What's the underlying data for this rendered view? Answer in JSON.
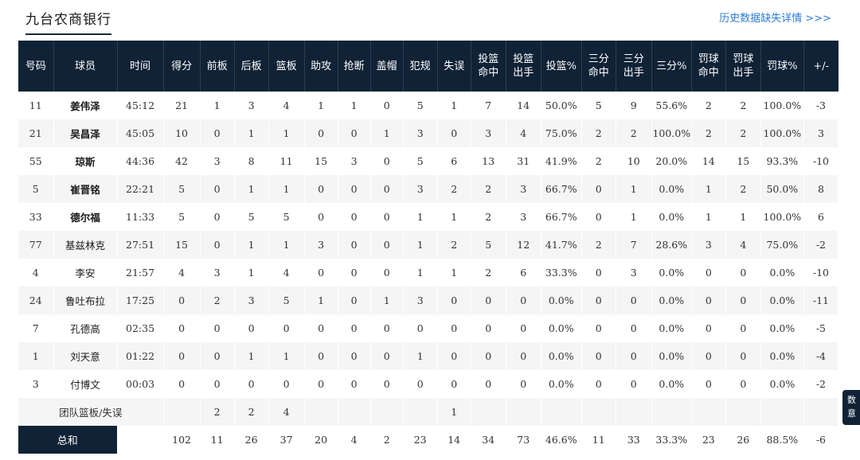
{
  "team": {
    "name": "九台农商银行"
  },
  "missing_link": "历史数据缺失详情 >>>",
  "side_tab": {
    "line1": "数",
    "line2": "意"
  },
  "headers": [
    "号码",
    "球员",
    "时间",
    "得分",
    "前板",
    "后板",
    "篮板",
    "助攻",
    "抢断",
    "盖帽",
    "犯规",
    "失误",
    "投篮\n命中",
    "投篮\n出手",
    "投篮%",
    "三分\n命中",
    "三分\n出手",
    "三分%",
    "罚球\n命中",
    "罚球\n出手",
    "罚球%",
    "+/-"
  ],
  "players": [
    {
      "num": "11",
      "name": "姜伟泽",
      "time": "45:12",
      "pts": "21",
      "oreb": "1",
      "dreb": "3",
      "reb": "4",
      "ast": "1",
      "stl": "1",
      "blk": "0",
      "pf": "5",
      "tov": "1",
      "fgm": "7",
      "fga": "14",
      "fgp": "50.0%",
      "tpm": "5",
      "tpa": "9",
      "tpp": "55.6%",
      "ftm": "2",
      "fta": "2",
      "ftp": "100.0%",
      "pm": "-3",
      "bold": true
    },
    {
      "num": "21",
      "name": "吴昌泽",
      "time": "45:05",
      "pts": "10",
      "oreb": "0",
      "dreb": "1",
      "reb": "1",
      "ast": "0",
      "stl": "0",
      "blk": "1",
      "pf": "3",
      "tov": "0",
      "fgm": "3",
      "fga": "4",
      "fgp": "75.0%",
      "tpm": "2",
      "tpa": "2",
      "tpp": "100.0%",
      "ftm": "2",
      "fta": "2",
      "ftp": "100.0%",
      "pm": "3",
      "bold": true
    },
    {
      "num": "55",
      "name": "琼斯",
      "time": "44:36",
      "pts": "42",
      "oreb": "3",
      "dreb": "8",
      "reb": "11",
      "ast": "15",
      "stl": "3",
      "blk": "0",
      "pf": "5",
      "tov": "6",
      "fgm": "13",
      "fga": "31",
      "fgp": "41.9%",
      "tpm": "2",
      "tpa": "10",
      "tpp": "20.0%",
      "ftm": "14",
      "fta": "15",
      "ftp": "93.3%",
      "pm": "-10",
      "bold": true
    },
    {
      "num": "5",
      "name": "崔晋铭",
      "time": "22:21",
      "pts": "5",
      "oreb": "0",
      "dreb": "1",
      "reb": "1",
      "ast": "0",
      "stl": "0",
      "blk": "0",
      "pf": "3",
      "tov": "2",
      "fgm": "2",
      "fga": "3",
      "fgp": "66.7%",
      "tpm": "0",
      "tpa": "1",
      "tpp": "0.0%",
      "ftm": "1",
      "fta": "2",
      "ftp": "50.0%",
      "pm": "8",
      "bold": true
    },
    {
      "num": "33",
      "name": "德尔福",
      "time": "11:33",
      "pts": "5",
      "oreb": "0",
      "dreb": "5",
      "reb": "5",
      "ast": "0",
      "stl": "0",
      "blk": "0",
      "pf": "1",
      "tov": "1",
      "fgm": "2",
      "fga": "3",
      "fgp": "66.7%",
      "tpm": "0",
      "tpa": "1",
      "tpp": "0.0%",
      "ftm": "1",
      "fta": "1",
      "ftp": "100.0%",
      "pm": "6",
      "bold": true
    },
    {
      "num": "77",
      "name": "基兹林克",
      "time": "27:51",
      "pts": "15",
      "oreb": "0",
      "dreb": "1",
      "reb": "1",
      "ast": "3",
      "stl": "0",
      "blk": "0",
      "pf": "1",
      "tov": "2",
      "fgm": "5",
      "fga": "12",
      "fgp": "41.7%",
      "tpm": "2",
      "tpa": "7",
      "tpp": "28.6%",
      "ftm": "3",
      "fta": "4",
      "ftp": "75.0%",
      "pm": "-2",
      "bold": false
    },
    {
      "num": "4",
      "name": "李安",
      "time": "21:57",
      "pts": "4",
      "oreb": "3",
      "dreb": "1",
      "reb": "4",
      "ast": "0",
      "stl": "0",
      "blk": "0",
      "pf": "1",
      "tov": "1",
      "fgm": "2",
      "fga": "6",
      "fgp": "33.3%",
      "tpm": "0",
      "tpa": "3",
      "tpp": "0.0%",
      "ftm": "0",
      "fta": "0",
      "ftp": "0.0%",
      "pm": "-10",
      "bold": false
    },
    {
      "num": "24",
      "name": "鲁吐布拉",
      "time": "17:25",
      "pts": "0",
      "oreb": "2",
      "dreb": "3",
      "reb": "5",
      "ast": "1",
      "stl": "0",
      "blk": "1",
      "pf": "3",
      "tov": "0",
      "fgm": "0",
      "fga": "0",
      "fgp": "0.0%",
      "tpm": "0",
      "tpa": "0",
      "tpp": "0.0%",
      "ftm": "0",
      "fta": "0",
      "ftp": "0.0%",
      "pm": "-11",
      "bold": false
    },
    {
      "num": "7",
      "name": "孔德高",
      "time": "02:35",
      "pts": "0",
      "oreb": "0",
      "dreb": "0",
      "reb": "0",
      "ast": "0",
      "stl": "0",
      "blk": "0",
      "pf": "0",
      "tov": "0",
      "fgm": "0",
      "fga": "0",
      "fgp": "0.0%",
      "tpm": "0",
      "tpa": "0",
      "tpp": "0.0%",
      "ftm": "0",
      "fta": "0",
      "ftp": "0.0%",
      "pm": "-5",
      "bold": false
    },
    {
      "num": "1",
      "name": "刘天意",
      "time": "01:22",
      "pts": "0",
      "oreb": "0",
      "dreb": "1",
      "reb": "1",
      "ast": "0",
      "stl": "0",
      "blk": "0",
      "pf": "1",
      "tov": "0",
      "fgm": "0",
      "fga": "0",
      "fgp": "0.0%",
      "tpm": "0",
      "tpa": "0",
      "tpp": "0.0%",
      "ftm": "0",
      "fta": "0",
      "ftp": "0.0%",
      "pm": "-4",
      "bold": false
    },
    {
      "num": "3",
      "name": "付博文",
      "time": "00:03",
      "pts": "0",
      "oreb": "0",
      "dreb": "0",
      "reb": "0",
      "ast": "0",
      "stl": "0",
      "blk": "0",
      "pf": "0",
      "tov": "0",
      "fgm": "0",
      "fga": "0",
      "fgp": "0.0%",
      "tpm": "0",
      "tpa": "0",
      "tpp": "0.0%",
      "ftm": "0",
      "fta": "0",
      "ftp": "0.0%",
      "pm": "-2",
      "bold": false
    }
  ],
  "team_row": {
    "label": "团队篮板/失误",
    "oreb": "2",
    "dreb": "2",
    "reb": "4",
    "tov": "1"
  },
  "total": {
    "label": "总和",
    "pts": "102",
    "oreb": "11",
    "dreb": "26",
    "reb": "37",
    "ast": "20",
    "stl": "4",
    "blk": "2",
    "pf": "23",
    "tov": "14",
    "fgm": "34",
    "fga": "73",
    "fgp": "46.6%",
    "tpm": "11",
    "tpa": "33",
    "tpp": "33.3%",
    "ftm": "23",
    "fta": "26",
    "ftp": "88.5%",
    "pm": "-6"
  }
}
